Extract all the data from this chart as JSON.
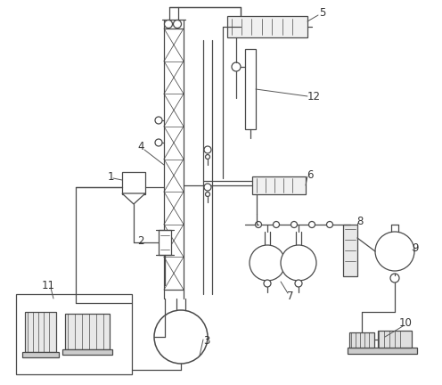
{
  "bg_color": "#ffffff",
  "line_color": "#4a4a4a",
  "lw": 0.9,
  "fig_w": 4.96,
  "fig_h": 4.32,
  "dpi": 100
}
